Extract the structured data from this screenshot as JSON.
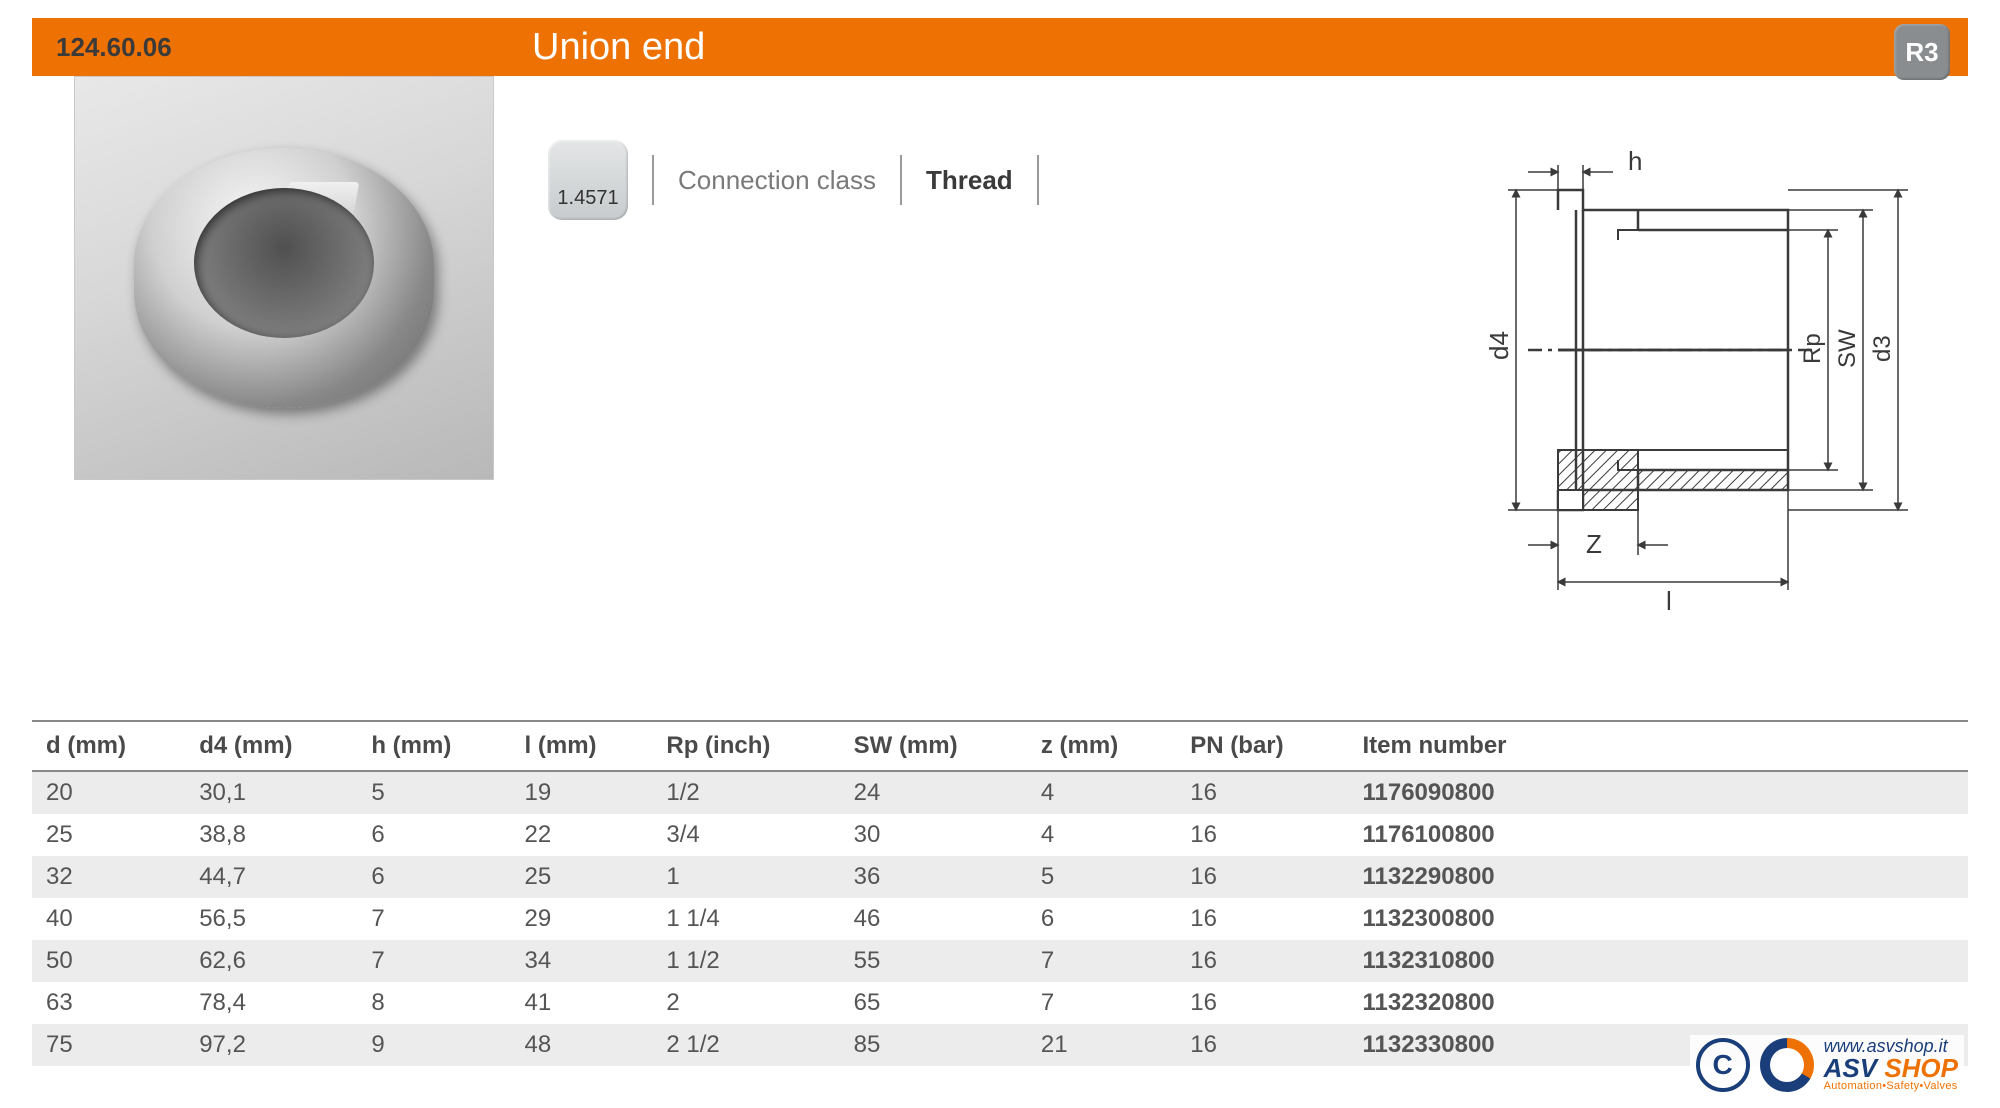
{
  "header": {
    "product_code": "124.60.06",
    "title": "Union end",
    "badge": "R3",
    "bar_color": "#ee7203",
    "title_color": "#ffffff"
  },
  "meta": {
    "material_code": "1.4571",
    "connection_label": "Connection class",
    "connection_value": "Thread"
  },
  "drawing": {
    "labels": {
      "h": "h",
      "d4": "d4",
      "Rp": "Rp",
      "SW": "SW",
      "d3": "d3",
      "Z": "Z",
      "l": "l"
    },
    "line_color": "#3a3a3a",
    "hatch_color": "#3a3a3a"
  },
  "table": {
    "columns": [
      "d (mm)",
      "d4 (mm)",
      "h (mm)",
      "l (mm)",
      "Rp (inch)",
      "SW (mm)",
      "z (mm)",
      "PN  (bar)",
      "Item number"
    ],
    "rows": [
      [
        "20",
        "30,1",
        "5",
        "19",
        "1/2",
        "24",
        "4",
        "16",
        "1176090800"
      ],
      [
        "25",
        "38,8",
        "6",
        "22",
        "3/4",
        "30",
        "4",
        "16",
        "1176100800"
      ],
      [
        "32",
        "44,7",
        "6",
        "25",
        "1",
        "36",
        "5",
        "16",
        "1132290800"
      ],
      [
        "40",
        "56,5",
        "7",
        "29",
        "1 1/4",
        "46",
        "6",
        "16",
        "1132300800"
      ],
      [
        "50",
        "62,6",
        "7",
        "34",
        "1 1/2",
        "55",
        "7",
        "16",
        "1132310800"
      ],
      [
        "63",
        "78,4",
        "8",
        "41",
        "2",
        "65",
        "7",
        "16",
        "1132320800"
      ],
      [
        "75",
        "97,2",
        "9",
        "48",
        "2 1/2",
        "85",
        "21",
        "16",
        "1132330800"
      ]
    ],
    "header_border_color": "#888888",
    "row_odd_bg": "#ececec",
    "row_even_bg": "#ffffff",
    "item_number_color": "#ee7203",
    "text_color": "#555555",
    "fontsize": 24
  },
  "logo": {
    "url": "www.asvshop.it",
    "brand_primary": "ASV",
    "brand_secondary": "SHOP",
    "tagline": "Automation•Safety•Valves",
    "copyright": "C"
  }
}
